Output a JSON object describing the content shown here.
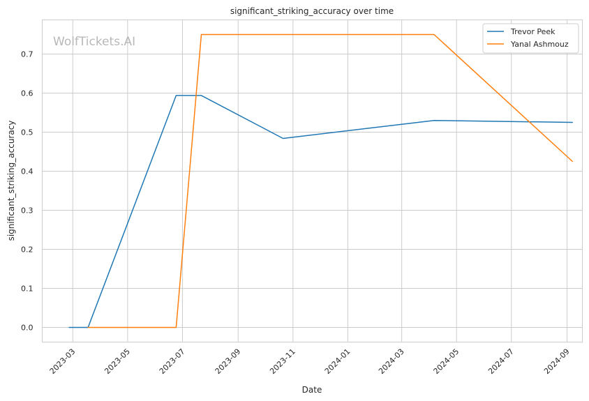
{
  "chart_data": {
    "type": "line",
    "title": "significant_striking_accuracy over time",
    "xlabel": "Date",
    "ylabel": "significant_striking_accuracy",
    "watermark": "WolfTickets.AI",
    "x_ticks": [
      "2023-03",
      "2023-05",
      "2023-07",
      "2023-09",
      "2023-11",
      "2024-01",
      "2024-03",
      "2024-05",
      "2024-07",
      "2024-09"
    ],
    "y_ticks": [
      "0.0",
      "0.1",
      "0.2",
      "0.3",
      "0.4",
      "0.5",
      "0.6",
      "0.7"
    ],
    "xlim": [
      "2023-01-26",
      "2024-09-18"
    ],
    "ylim": [
      -0.0375,
      0.7875
    ],
    "grid": true,
    "legend_position": "top-right",
    "series": [
      {
        "name": "Trevor Peek",
        "color": "#1f77b4",
        "points": [
          {
            "x": "2023-02-25",
            "y": 0.0
          },
          {
            "x": "2023-03-18",
            "y": 0.0
          },
          {
            "x": "2023-06-24",
            "y": 0.594
          },
          {
            "x": "2023-07-22",
            "y": 0.594
          },
          {
            "x": "2023-10-21",
            "y": 0.484
          },
          {
            "x": "2024-04-06",
            "y": 0.53
          },
          {
            "x": "2024-09-07",
            "y": 0.525
          }
        ]
      },
      {
        "name": "Yanal Ashmouz",
        "color": "#ff7f0e",
        "points": [
          {
            "x": "2023-03-18",
            "y": 0.0
          },
          {
            "x": "2023-06-24",
            "y": 0.0
          },
          {
            "x": "2023-07-22",
            "y": 0.75
          },
          {
            "x": "2024-04-06",
            "y": 0.75
          },
          {
            "x": "2024-09-07",
            "y": 0.425
          }
        ]
      }
    ]
  }
}
